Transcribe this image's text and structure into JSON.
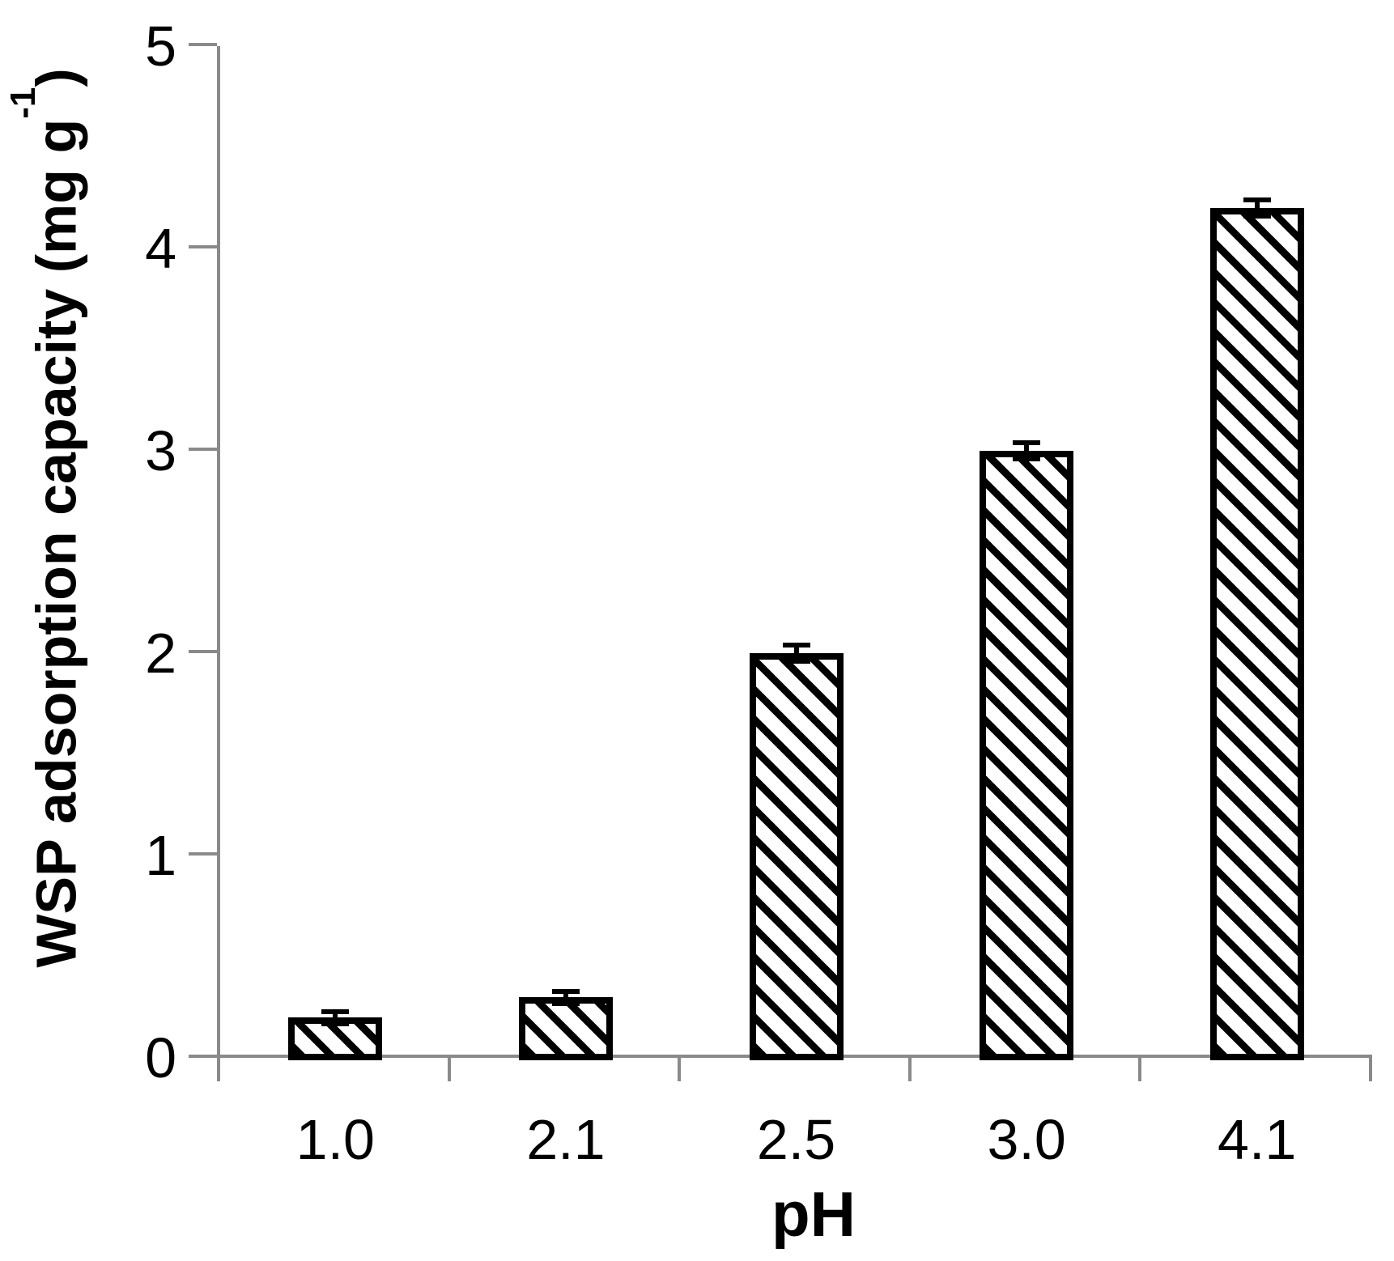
{
  "figure": {
    "background": "#ffffff"
  },
  "chart_data": {
    "type": "bar",
    "title": "",
    "xlabel": "pH",
    "ylabel": "WSP adsorption capacity (mg g⁻¹)",
    "ylabel_parts": {
      "main": "WSP adsorption capacity (mg g",
      "sup": "-1",
      "close": ")"
    },
    "categories": [
      "1.0",
      "2.1",
      "2.5",
      "3.0",
      "4.1"
    ],
    "values": [
      0.2,
      0.3,
      2.0,
      3.0,
      4.2
    ],
    "error_bars": [
      0.03,
      0.03,
      0.04,
      0.04,
      0.04
    ],
    "yticks": [
      0,
      1,
      2,
      3,
      4,
      5
    ],
    "ylim": [
      0,
      5
    ],
    "grid": false,
    "legend": false,
    "bar_fill": "#ffffff",
    "bar_hatch": "diagonal-down",
    "hatch_color": "#000000",
    "bar_border_color": "#000000",
    "axis_color": "#8a8a8a",
    "text_color": "#000000"
  }
}
